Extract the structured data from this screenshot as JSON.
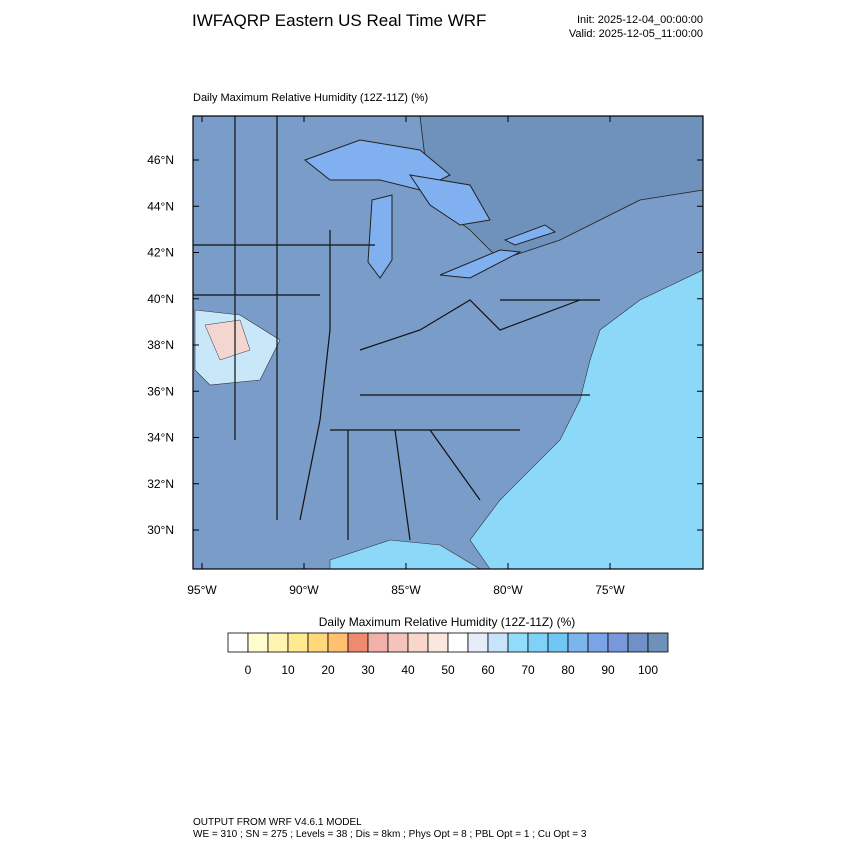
{
  "header": {
    "title": "IWFAQRP Eastern US Real Time WRF",
    "init": "Init: 2025-12-04_00:00:00",
    "valid": "Valid: 2025-12-05_11:00:00"
  },
  "map": {
    "title": "Daily Maximum Relative Humidity (12Z-11Z)   (%)",
    "lat_labels": [
      "46°N",
      "44°N",
      "42°N",
      "40°N",
      "38°N",
      "36°N",
      "34°N",
      "32°N",
      "30°N"
    ],
    "lon_labels": [
      "95°W",
      "90°W",
      "85°W",
      "80°W",
      "75°W"
    ]
  },
  "colorbar": {
    "title": "Daily Maximum Relative Humidity (12Z-11Z)  (%)",
    "labels": [
      "0",
      "10",
      "20",
      "30",
      "40",
      "50",
      "60",
      "70",
      "80",
      "90",
      "100"
    ],
    "colors": [
      "#ffffff",
      "#fffdd0",
      "#fff5b0",
      "#ffea90",
      "#ffd87a",
      "#ffc070",
      "#f08a6e",
      "#f2b0a8",
      "#f4c4bc",
      "#f8d6cc",
      "#fae8e0",
      "#ffffff",
      "#e6ecfa",
      "#c8e4fa",
      "#90dcfa",
      "#7ed2f8",
      "#70c6f4",
      "#7cb4ee",
      "#7aa4e8",
      "#7898dc",
      "#7090c8",
      "#6f90b8"
    ]
  },
  "footer": {
    "line1": "OUTPUT FROM WRF V4.6.1 MODEL",
    "line2": "WE = 310 ; SN = 275 ; Levels = 38 ; Dis = 8km ; Phys Opt = 8 ; PBL Opt = 1 ; Cu Opt = 3"
  }
}
